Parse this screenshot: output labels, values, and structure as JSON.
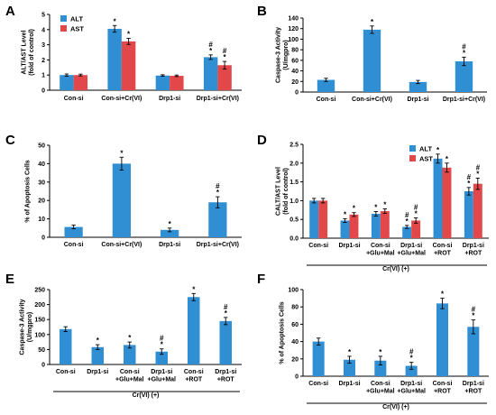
{
  "colors": {
    "blue": "#2f8fd2",
    "red": "#e2474a"
  },
  "chart_data": [
    {
      "panel": "A",
      "type": "bar",
      "ylabel": "ALT/AST Level (fold of  control)",
      "ylim": [
        0,
        5
      ],
      "yticks": [
        0,
        1,
        2,
        3,
        4,
        5
      ],
      "categories": [
        [
          "Con-si"
        ],
        [
          "Con-si+Cr(VI)"
        ],
        [
          "Drp1-si"
        ],
        [
          "Drp1-si+Cr(VI)"
        ]
      ],
      "series": [
        {
          "name": "ALT",
          "color": "#2f8fd2",
          "values": [
            1.0,
            4.05,
            0.97,
            2.18
          ],
          "errors": [
            0.07,
            0.22,
            0.05,
            0.15
          ],
          "marks": [
            "",
            "*",
            "",
            "#\n*"
          ]
        },
        {
          "name": "AST",
          "color": "#e2474a",
          "values": [
            1.0,
            3.22,
            0.95,
            1.65
          ],
          "errors": [
            0.06,
            0.2,
            0.05,
            0.25
          ],
          "marks": [
            "",
            "*",
            "",
            "#\n*"
          ]
        }
      ],
      "legend": "top-left",
      "group_label": ""
    },
    {
      "panel": "B",
      "type": "bar",
      "ylabel": "Caspase-3 Activity (U/mgpro)",
      "ylim": [
        0,
        140
      ],
      "yticks": [
        0,
        20,
        40,
        60,
        80,
        100,
        120,
        140
      ],
      "categories": [
        [
          "Con-si"
        ],
        [
          "Con-si+Cr(VI)"
        ],
        [
          "Drp1-si"
        ],
        [
          "Drp1-si+Cr(VI)"
        ]
      ],
      "series": [
        {
          "name": "",
          "color": "#2f8fd2",
          "values": [
            23,
            118,
            19,
            58
          ],
          "errors": [
            3,
            7,
            3,
            8
          ],
          "marks": [
            "",
            "*",
            "",
            "#\n*"
          ]
        }
      ],
      "legend": "",
      "group_label": ""
    },
    {
      "panel": "C",
      "type": "bar",
      "ylabel": "% of Apoptosis Cells",
      "ylim": [
        0,
        50
      ],
      "yticks": [
        0,
        10,
        20,
        30,
        40,
        50
      ],
      "categories": [
        [
          "Con-si"
        ],
        [
          "Con-si+Cr(VI)"
        ],
        [
          "Drp1-si"
        ],
        [
          "Drp1-si+Cr(VI)"
        ]
      ],
      "series": [
        {
          "name": "",
          "color": "#2f8fd2",
          "values": [
            5.6,
            40,
            4,
            19
          ],
          "errors": [
            1,
            3.5,
            1,
            3
          ],
          "marks": [
            "",
            "*",
            "*",
            "#\n*"
          ]
        }
      ],
      "legend": "",
      "group_label": ""
    },
    {
      "panel": "D",
      "type": "bar",
      "ylabel": "CALT/AST Level (fold of  control)",
      "ylim": [
        0,
        2.5
      ],
      "yticks": [
        0,
        0.5,
        1.0,
        1.5,
        2.0,
        2.5
      ],
      "categories": [
        [
          "Con-si"
        ],
        [
          "Drp1-si"
        ],
        [
          "Con-si",
          "+Glu+Mal"
        ],
        [
          "Drp1-si",
          "+Glu+Mal"
        ],
        [
          "Con-si",
          "+ROT"
        ],
        [
          "Drp1-si",
          "+ROT"
        ]
      ],
      "series": [
        {
          "name": "ALT",
          "color": "#2f8fd2",
          "values": [
            1.0,
            0.47,
            0.65,
            0.3,
            2.12,
            1.25
          ],
          "errors": [
            0.06,
            0.05,
            0.06,
            0.04,
            0.12,
            0.1
          ],
          "marks": [
            "",
            "*",
            "*",
            "#\n*",
            "*",
            "#\n*"
          ]
        },
        {
          "name": "AST",
          "color": "#e2474a",
          "values": [
            1.0,
            0.63,
            0.72,
            0.47,
            1.88,
            1.45
          ],
          "errors": [
            0.06,
            0.05,
            0.06,
            0.07,
            0.12,
            0.15
          ],
          "marks": [
            "",
            "*",
            "*",
            "#\n*",
            "*",
            "#\n*"
          ]
        }
      ],
      "legend": "top-right",
      "group_label": "Cr(VI) (+)"
    },
    {
      "panel": "E",
      "type": "bar",
      "ylabel": "Caspase-3 Activity (U/mgpro)",
      "ylim": [
        0,
        250
      ],
      "yticks": [
        0,
        50,
        100,
        150,
        200,
        250
      ],
      "categories": [
        [
          "Con-si"
        ],
        [
          "Drp1-si"
        ],
        [
          "Con-si",
          "+Glu+Mal"
        ],
        [
          "Drp1-si",
          "+Glu+Mal"
        ],
        [
          "Con-si",
          "+ROT"
        ],
        [
          "Drp1-si",
          "+ROT"
        ]
      ],
      "series": [
        {
          "name": "",
          "color": "#2f8fd2",
          "values": [
            118,
            58,
            65,
            43,
            225,
            145
          ],
          "errors": [
            8,
            8,
            10,
            9,
            12,
            12
          ],
          "marks": [
            "",
            "*",
            "*",
            "#\n*",
            "*",
            "#\n*"
          ]
        }
      ],
      "legend": "",
      "group_label": "Cr(VI) (+)"
    },
    {
      "panel": "F",
      "type": "bar",
      "ylabel": "% of Apoptosis Cells",
      "ylim": [
        0,
        100
      ],
      "yticks": [
        0,
        20,
        40,
        60,
        80,
        100
      ],
      "categories": [
        [
          "Con-si"
        ],
        [
          "Drp1-si"
        ],
        [
          "Con-si",
          "+Glu+Mal"
        ],
        [
          "Drp1-si",
          "+Glu+Mal"
        ],
        [
          "Con-si",
          "+ROT"
        ],
        [
          "Drp1-si",
          "+ROT"
        ]
      ],
      "series": [
        {
          "name": "",
          "color": "#2f8fd2",
          "values": [
            40,
            19,
            18,
            12,
            84,
            57
          ],
          "errors": [
            4,
            4,
            5,
            4,
            6,
            8
          ],
          "marks": [
            "",
            "*",
            "*",
            "#\n*",
            "*",
            "#\n*"
          ]
        }
      ],
      "legend": "",
      "group_label": "Cr(VI) (+)"
    }
  ]
}
